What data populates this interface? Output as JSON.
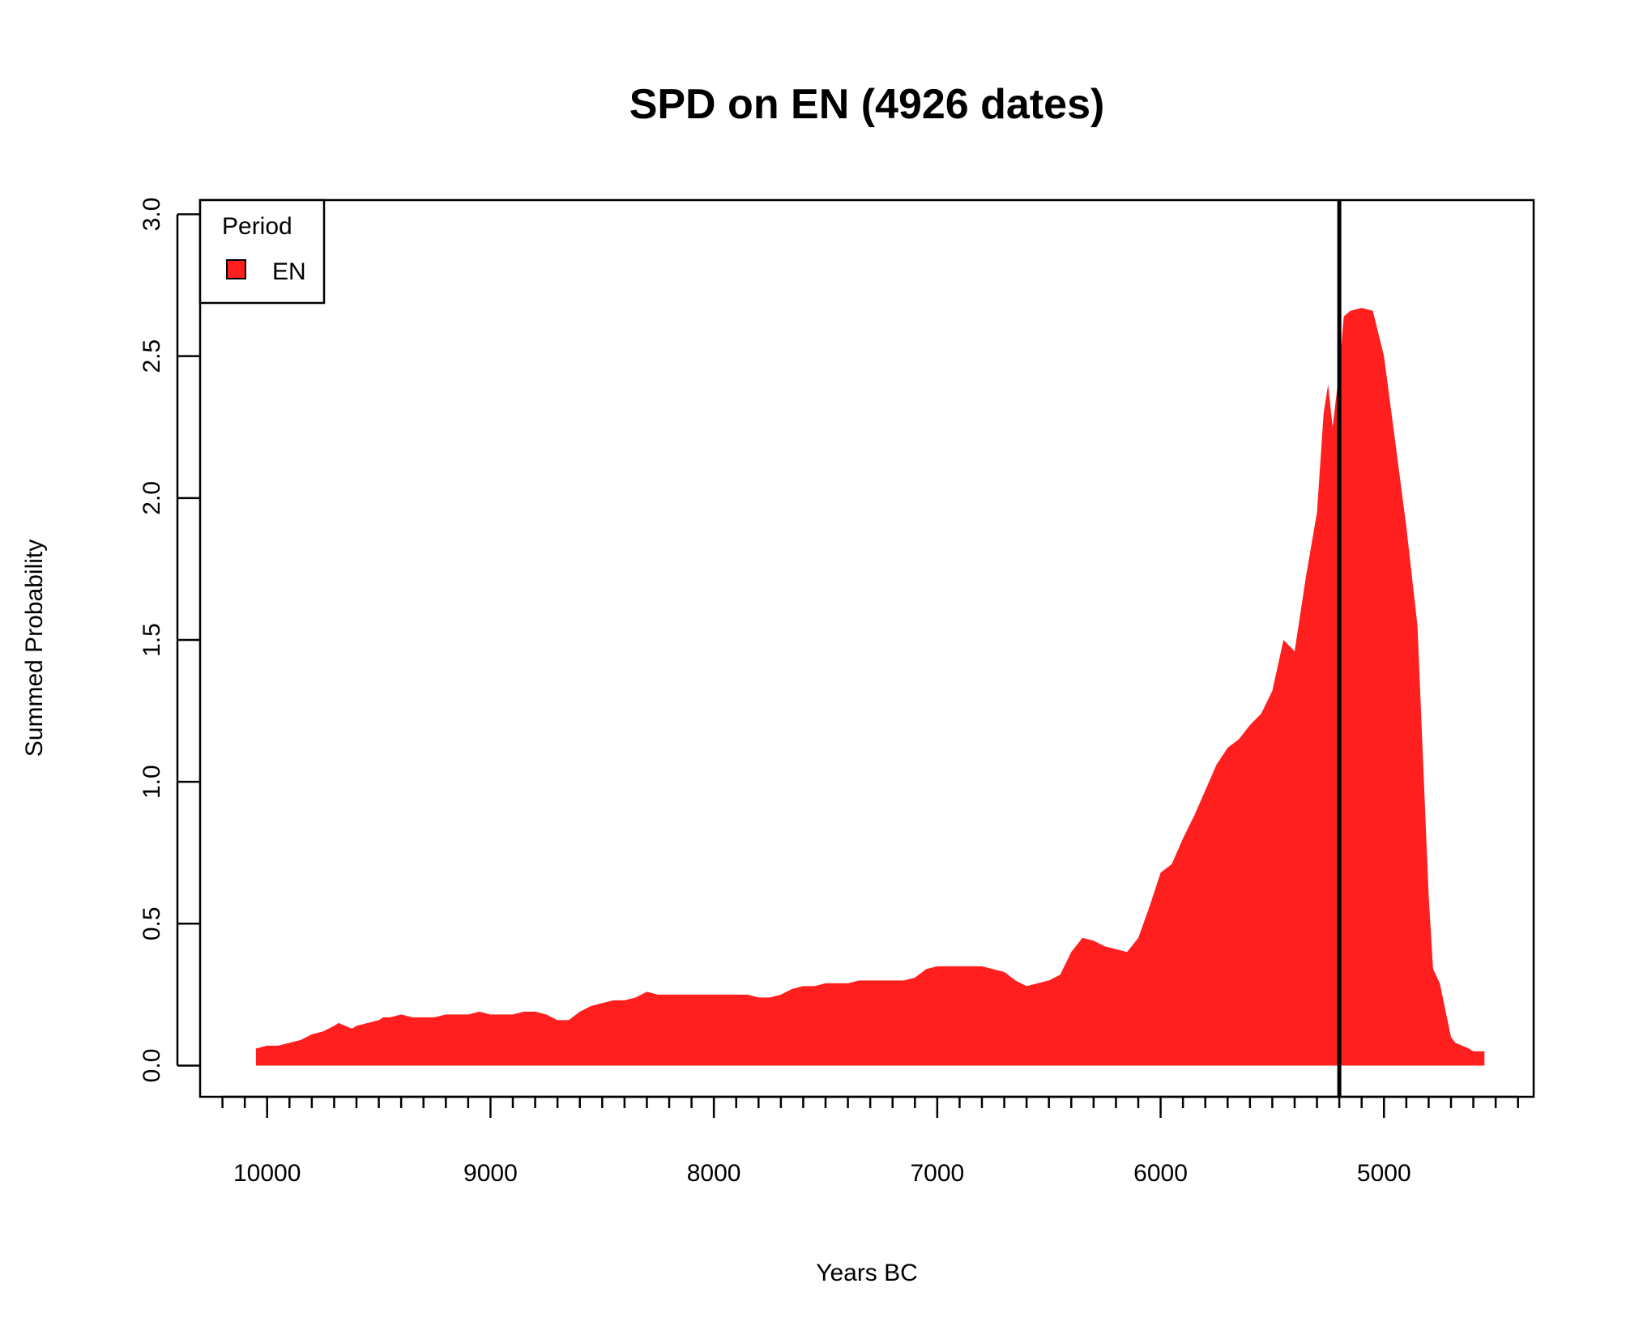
{
  "chart_data": {
    "type": "area",
    "title": "SPD on EN (4926 dates)",
    "xlabel": "Years BC",
    "ylabel": "Summed Probability",
    "xlim": [
      10300,
      4330
    ],
    "ylim": [
      -0.11,
      3.05
    ],
    "x_reversed": true,
    "x_ticks": [
      10000,
      9000,
      8000,
      7000,
      6000,
      5000
    ],
    "x_tick_labels": [
      "10000",
      "9000",
      "8000",
      "7000",
      "6000",
      "5000"
    ],
    "x_minor_tick_step": 100,
    "y_ticks": [
      0.0,
      0.5,
      1.0,
      1.5,
      2.0,
      2.5,
      3.0
    ],
    "y_tick_labels": [
      "0.0",
      "0.5",
      "1.0",
      "1.5",
      "2.0",
      "2.5",
      "3.0"
    ],
    "grid": false,
    "legend": {
      "title": "Period",
      "position": "top-left",
      "entries": [
        "EN"
      ]
    },
    "vline": {
      "x": 5200,
      "color": "#000000"
    },
    "colors": {
      "fill": "#ff1f1f",
      "axis": "#000000"
    },
    "series": [
      {
        "name": "EN",
        "x": [
          10050,
          10000,
          9950,
          9900,
          9850,
          9800,
          9750,
          9700,
          9680,
          9650,
          9620,
          9600,
          9550,
          9500,
          9480,
          9450,
          9400,
          9350,
          9300,
          9250,
          9200,
          9150,
          9100,
          9050,
          9000,
          8950,
          8900,
          8850,
          8800,
          8750,
          8700,
          8650,
          8600,
          8550,
          8500,
          8450,
          8400,
          8350,
          8300,
          8250,
          8200,
          8150,
          8100,
          8050,
          8000,
          7950,
          7900,
          7850,
          7800,
          7750,
          7700,
          7650,
          7600,
          7550,
          7500,
          7450,
          7400,
          7350,
          7300,
          7250,
          7200,
          7150,
          7100,
          7050,
          7000,
          6950,
          6900,
          6850,
          6800,
          6750,
          6700,
          6650,
          6600,
          6550,
          6500,
          6450,
          6400,
          6350,
          6300,
          6250,
          6200,
          6150,
          6100,
          6050,
          6000,
          5950,
          5900,
          5850,
          5800,
          5750,
          5700,
          5650,
          5600,
          5550,
          5500,
          5450,
          5400,
          5350,
          5300,
          5270,
          5250,
          5230,
          5200,
          5180,
          5150,
          5100,
          5050,
          5000,
          4950,
          4900,
          4850,
          4800,
          4780,
          4750,
          4700,
          4680,
          4650,
          4620,
          4600,
          4580,
          4550
        ],
        "values": [
          0.06,
          0.07,
          0.07,
          0.08,
          0.09,
          0.11,
          0.12,
          0.14,
          0.15,
          0.14,
          0.13,
          0.14,
          0.15,
          0.16,
          0.17,
          0.17,
          0.18,
          0.17,
          0.17,
          0.17,
          0.18,
          0.18,
          0.18,
          0.19,
          0.18,
          0.18,
          0.18,
          0.19,
          0.19,
          0.18,
          0.16,
          0.16,
          0.19,
          0.21,
          0.22,
          0.23,
          0.23,
          0.24,
          0.26,
          0.25,
          0.25,
          0.25,
          0.25,
          0.25,
          0.25,
          0.25,
          0.25,
          0.25,
          0.24,
          0.24,
          0.25,
          0.27,
          0.28,
          0.28,
          0.29,
          0.29,
          0.29,
          0.3,
          0.3,
          0.3,
          0.3,
          0.3,
          0.31,
          0.34,
          0.35,
          0.35,
          0.35,
          0.35,
          0.35,
          0.34,
          0.33,
          0.3,
          0.28,
          0.29,
          0.3,
          0.32,
          0.4,
          0.45,
          0.44,
          0.42,
          0.41,
          0.4,
          0.45,
          0.56,
          0.68,
          0.71,
          0.8,
          0.88,
          0.97,
          1.06,
          1.12,
          1.15,
          1.2,
          1.24,
          1.32,
          1.5,
          1.46,
          1.72,
          1.95,
          2.3,
          2.4,
          2.25,
          2.45,
          2.64,
          2.66,
          2.67,
          2.66,
          2.5,
          2.2,
          1.9,
          1.55,
          0.6,
          0.34,
          0.29,
          0.1,
          0.08,
          0.07,
          0.06,
          0.05,
          0.05,
          0.05
        ]
      }
    ]
  }
}
